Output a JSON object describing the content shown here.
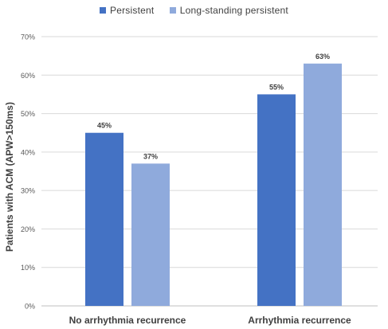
{
  "chart_data": {
    "type": "bar",
    "categories": [
      "No arrhythmia recurrence",
      "Arrhythmia recurrence"
    ],
    "series": [
      {
        "name": "Persistent",
        "values": [
          45,
          55
        ],
        "labels": [
          "45%",
          "55%"
        ],
        "color": "#4472C4"
      },
      {
        "name": "Long-standing persistent",
        "values": [
          37,
          63
        ],
        "labels": [
          "37%",
          "63%"
        ],
        "color": "#8FAADC"
      }
    ],
    "title": "",
    "xlabel": "",
    "ylabel": "Patients with ACM (APW>150ms)",
    "ylim": [
      0,
      70
    ],
    "yticks": [
      0,
      10,
      20,
      30,
      40,
      50,
      60,
      70
    ],
    "ytick_labels": [
      "0%",
      "10%",
      "20%",
      "30%",
      "40%",
      "50%",
      "60%",
      "70%"
    ],
    "grid": true,
    "legend_position": "top"
  }
}
